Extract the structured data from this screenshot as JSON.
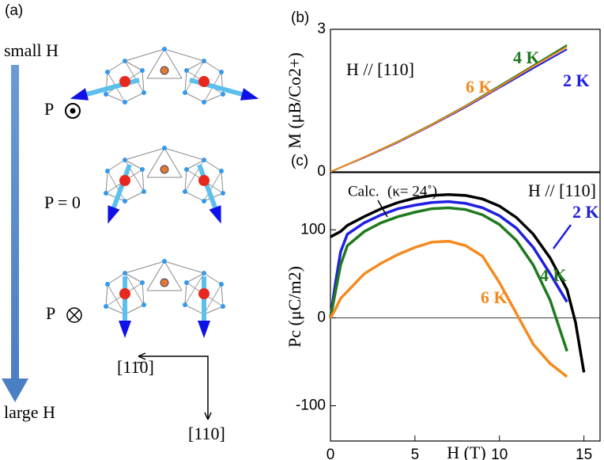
{
  "panel_a": {
    "label": "(a)",
    "top_label": "small H",
    "bottom_label": "large H",
    "states": [
      "P",
      "P = 0",
      "P"
    ],
    "directions": [
      "[11̄0]",
      "[110]"
    ]
  },
  "chart_data": [
    {
      "type": "line",
      "label": "(b)",
      "y_label": "M (μB/Co2+)",
      "annotation": "H // [110]",
      "x": [
        0,
        2,
        4,
        6,
        8,
        10,
        12,
        14
      ],
      "xlim": [
        0,
        16
      ],
      "ylim": [
        0,
        3
      ],
      "yticks": [
        0,
        3
      ],
      "series": [
        {
          "name": "2 K",
          "color": "#1f1fe0",
          "values": [
            0,
            0.3,
            0.62,
            0.98,
            1.36,
            1.77,
            2.18,
            2.58
          ]
        },
        {
          "name": "4 K",
          "color": "#1f7a1f",
          "values": [
            0,
            0.31,
            0.64,
            1.0,
            1.39,
            1.81,
            2.24,
            2.67
          ]
        },
        {
          "name": "6 K",
          "color": "#f58a1f",
          "values": [
            0,
            0.31,
            0.63,
            0.99,
            1.38,
            1.79,
            2.22,
            2.63
          ]
        }
      ]
    },
    {
      "type": "line",
      "label": "(c)",
      "x_label": "H (T)",
      "y_label": "Pc (μC/m2)",
      "annotation": "H // [110]",
      "calc_note": "(κ= 24˚)",
      "x": [
        0,
        0.3,
        0.6,
        1,
        2,
        3,
        4,
        5,
        6,
        7,
        8,
        9,
        10,
        11,
        12,
        13,
        14,
        14.5,
        15
      ],
      "xlim": [
        0,
        16
      ],
      "ylim": [
        -140,
        165
      ],
      "xticks": [
        0,
        5,
        10,
        15
      ],
      "yticks": [
        -100,
        0,
        100
      ],
      "reference_line": 0,
      "series": [
        {
          "name": "Calc.",
          "color": "#000000",
          "values": [
            92,
            95,
            98,
            105,
            115,
            124,
            131,
            136,
            139,
            140,
            139,
            135,
            127,
            114,
            95,
            68,
            32,
            -5,
            -62
          ]
        },
        {
          "name": "2 K",
          "color": "#1f1fe0",
          "values": [
            0,
            40,
            75,
            95,
            108,
            117,
            124,
            128,
            131,
            132,
            130,
            125,
            116,
            102,
            80,
            50,
            18,
            null,
            null
          ]
        },
        {
          "name": "4 K",
          "color": "#1f7a1f",
          "values": [
            0,
            30,
            60,
            82,
            98,
            108,
            115,
            120,
            124,
            125,
            123,
            117,
            106,
            88,
            60,
            20,
            -38,
            null,
            null
          ]
        },
        {
          "name": "6 K",
          "color": "#f58a1f",
          "values": [
            0,
            10,
            22,
            30,
            50,
            62,
            72,
            80,
            86,
            87,
            82,
            70,
            40,
            5,
            -30,
            -52,
            -67,
            null,
            null
          ]
        }
      ]
    }
  ]
}
